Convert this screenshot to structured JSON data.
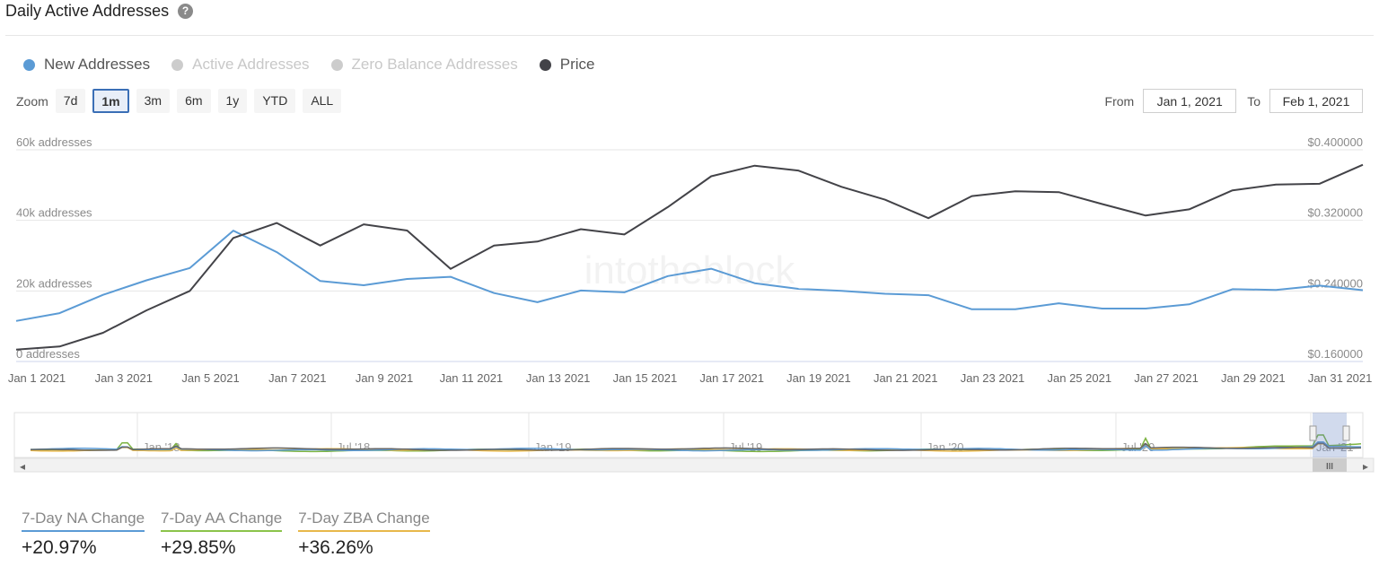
{
  "header": {
    "title": "Daily Active Addresses",
    "help_glyph": "?"
  },
  "legend": [
    {
      "label": "New Addresses",
      "color": "#5b9bd5",
      "active": true
    },
    {
      "label": "Active Addresses",
      "color": "#cccccc",
      "active": false
    },
    {
      "label": "Zero Balance Addresses",
      "color": "#cccccc",
      "active": false
    },
    {
      "label": "Price",
      "color": "#434348",
      "active": true
    }
  ],
  "zoom": {
    "label": "Zoom",
    "buttons": [
      "7d",
      "1m",
      "3m",
      "6m",
      "1y",
      "YTD",
      "ALL"
    ],
    "active": "1m"
  },
  "range": {
    "from_label": "From",
    "from_value": "Jan 1, 2021",
    "to_label": "To",
    "to_value": "Feb 1, 2021"
  },
  "chart_data": {
    "type": "line",
    "title": "Daily Active Addresses",
    "watermark": "intotheblock",
    "x": [
      "Jan 1",
      "Jan 2",
      "Jan 3",
      "Jan 4",
      "Jan 5",
      "Jan 6",
      "Jan 7",
      "Jan 8",
      "Jan 9",
      "Jan 10",
      "Jan 11",
      "Jan 12",
      "Jan 13",
      "Jan 14",
      "Jan 15",
      "Jan 16",
      "Jan 17",
      "Jan 18",
      "Jan 19",
      "Jan 20",
      "Jan 21",
      "Jan 22",
      "Jan 23",
      "Jan 24",
      "Jan 25",
      "Jan 26",
      "Jan 27",
      "Jan 28",
      "Jan 29",
      "Jan 30",
      "Jan 31",
      "Feb 1"
    ],
    "x_tick_labels": [
      "Jan 1 2021",
      "Jan 3 2021",
      "Jan 5 2021",
      "Jan 7 2021",
      "Jan 9 2021",
      "Jan 11 2021",
      "Jan 13 2021",
      "Jan 15 2021",
      "Jan 17 2021",
      "Jan 19 2021",
      "Jan 21 2021",
      "Jan 23 2021",
      "Jan 25 2021",
      "Jan 27 2021",
      "Jan 29 2021",
      "Jan 31 2021"
    ],
    "y_left": {
      "label": "addresses",
      "ticks": [
        "60k addresses",
        "40k addresses",
        "20k addresses",
        "0 addresses"
      ],
      "range": [
        0,
        60000
      ]
    },
    "y_right": {
      "label": "Price",
      "ticks": [
        "$0.400000",
        "$0.320000",
        "$0.240000",
        "$0.160000"
      ],
      "range": [
        0.16,
        0.4
      ]
    },
    "series": [
      {
        "name": "New Addresses",
        "axis": "left",
        "color": "#5b9bd5",
        "values": [
          11500,
          13700,
          18900,
          23000,
          26500,
          37100,
          31000,
          22800,
          21600,
          23400,
          24000,
          19400,
          16800,
          20100,
          19600,
          24200,
          26300,
          22200,
          20600,
          20000,
          19200,
          18800,
          14800,
          14800,
          16500,
          15000,
          15000,
          16200,
          20500,
          20300,
          21500,
          20200
        ]
      },
      {
        "name": "Price",
        "axis": "right",
        "color": "#434348",
        "values": [
          0.1735,
          0.177,
          0.1925,
          0.218,
          0.24,
          0.3,
          0.317,
          0.2915,
          0.3155,
          0.3085,
          0.265,
          0.2915,
          0.296,
          0.31,
          0.304,
          0.335,
          0.37,
          0.382,
          0.3765,
          0.358,
          0.3435,
          0.3225,
          0.3475,
          0.353,
          0.352,
          0.3385,
          0.3255,
          0.3325,
          0.354,
          0.3605,
          0.3615,
          0.383
        ]
      }
    ]
  },
  "navigator": {
    "labels": [
      "Jan '18",
      "Jul '18",
      "Jan '19",
      "Jul '19",
      "Jan '20",
      "Jul '20",
      "Jan '21"
    ],
    "series_colors": [
      "#7cb342",
      "#e8b84a",
      "#5b9bd5",
      "#666666"
    ],
    "grip_glyph": "III",
    "left_arrow": "◂",
    "right_arrow": "▸"
  },
  "stats": [
    {
      "label": "7-Day NA Change",
      "value": "+20.97%",
      "color": "#5b9bd5"
    },
    {
      "label": "7-Day AA Change",
      "value": "+29.85%",
      "color": "#8bc34a"
    },
    {
      "label": "7-Day ZBA Change",
      "value": "+36.26%",
      "color": "#e8b84a"
    }
  ]
}
